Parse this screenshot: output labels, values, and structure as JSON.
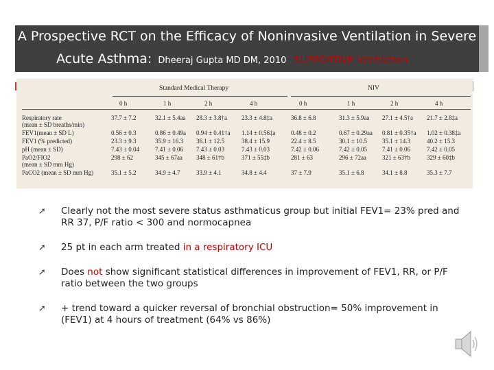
{
  "title": {
    "line1": "A Prospective RCT on the Efficacy of Noninvasive Ventilation in Severe",
    "line2_main": "Acute Asthma:",
    "line2_author": "Dheeraj Gupta MD DM, 2010",
    "line2_tag": "SUPPORTIVE Ventilation"
  },
  "table": {
    "group1": "Standard Medical Therapy",
    "group2": "NIV",
    "times": [
      "0 h",
      "1 h",
      "2 h",
      "4 h",
      "0 h",
      "1 h",
      "2 h",
      "4 h"
    ],
    "row_labels": [
      "Respiratory rate",
      "(mean ± SD breaths/min)",
      "FEV1(mean ± SD L)",
      "FEV1 (% predicted)",
      "pH (mean ± SD)",
      "PaO2/FIO2",
      "(mean ± SD mm Hg)",
      "PaCO2 (mean ± SD mm Hg)"
    ],
    "rows": [
      [
        "37.7 ± 7.2",
        "32.1 ± 5.4aa",
        "28.3 ± 3.8†a",
        "23.3 ± 4.8‡a",
        "36.8 ± 6.8",
        "31.3 ± 5.9aa",
        "27.1 ± 4.5†a",
        "21.7 ± 2.8‡a"
      ],
      [
        "0.56 ± 0.3",
        "0.86 ± 0.49a",
        "0.94 ± 0.41†a",
        "1.14 ± 0.56‡a",
        "0.48 ± 0.2",
        "0.67 ± 0.29aa",
        "0.81 ± 0.35†a",
        "1.02 ± 0.38‡a"
      ],
      [
        "23.3 ± 9.3",
        "35.9 ± 16.3",
        "36.1 ± 12.5",
        "38.4 ± 15.9",
        "22.4 ± 8.5",
        "30.1 ± 10.5",
        "35.1 ± 14.3",
        "40.2 ± 15.3"
      ],
      [
        "7.43 ± 0.04",
        "7.41 ± 0.06",
        "7.43 ± 0.03",
        "7.43 ± 0.03",
        "7.42 ± 0.06",
        "7.42 ± 0.05",
        "7.41 ± 0.06",
        "7.42 ± 0.05"
      ],
      [
        "298 ± 62",
        "345 ± 67aa",
        "348 ± 61†b",
        "371 ± 55‡b",
        "281 ± 63",
        "296 ± 72aa",
        "321 ± 63†b",
        "329 ± 60‡b"
      ],
      [
        "35.1 ± 5.2",
        "34.9 ± 4.7",
        "33.9 ± 4.1",
        "34.8 ± 4.4",
        "37 ± 7.9",
        "35.1 ± 6.8",
        "34.1 ± 8.8",
        "35.3 ± 7.7"
      ]
    ]
  },
  "bullets": [
    {
      "text": "Clearly not the most severe status asthmaticus group but initial FEV1= 23% pred and RR 37, P/F ratio < 300 and normocapnea"
    },
    {
      "before": "25 pt in each arm treated ",
      "highlight": "in a respiratory ICU",
      "after": ""
    },
    {
      "before": "Does ",
      "highlight": "not",
      "after": " show significant statistical differences in improvement of FEV1, RR, or P/F ratio between the two groups"
    },
    {
      "text": "+ trend toward a quicker reversal of bronchial obstruction= 50% improvement in (FEV1) at 4 hours of treatment (64% vs 86%)"
    }
  ],
  "bullet_glyph": "➚",
  "colors": {
    "title_bg": "#3f3f3f",
    "title_shadow": "#a5a5a5",
    "highlight": "#c00000",
    "table_bg": "#f2ebe2"
  },
  "icons": {
    "audio": "speaker-icon"
  }
}
